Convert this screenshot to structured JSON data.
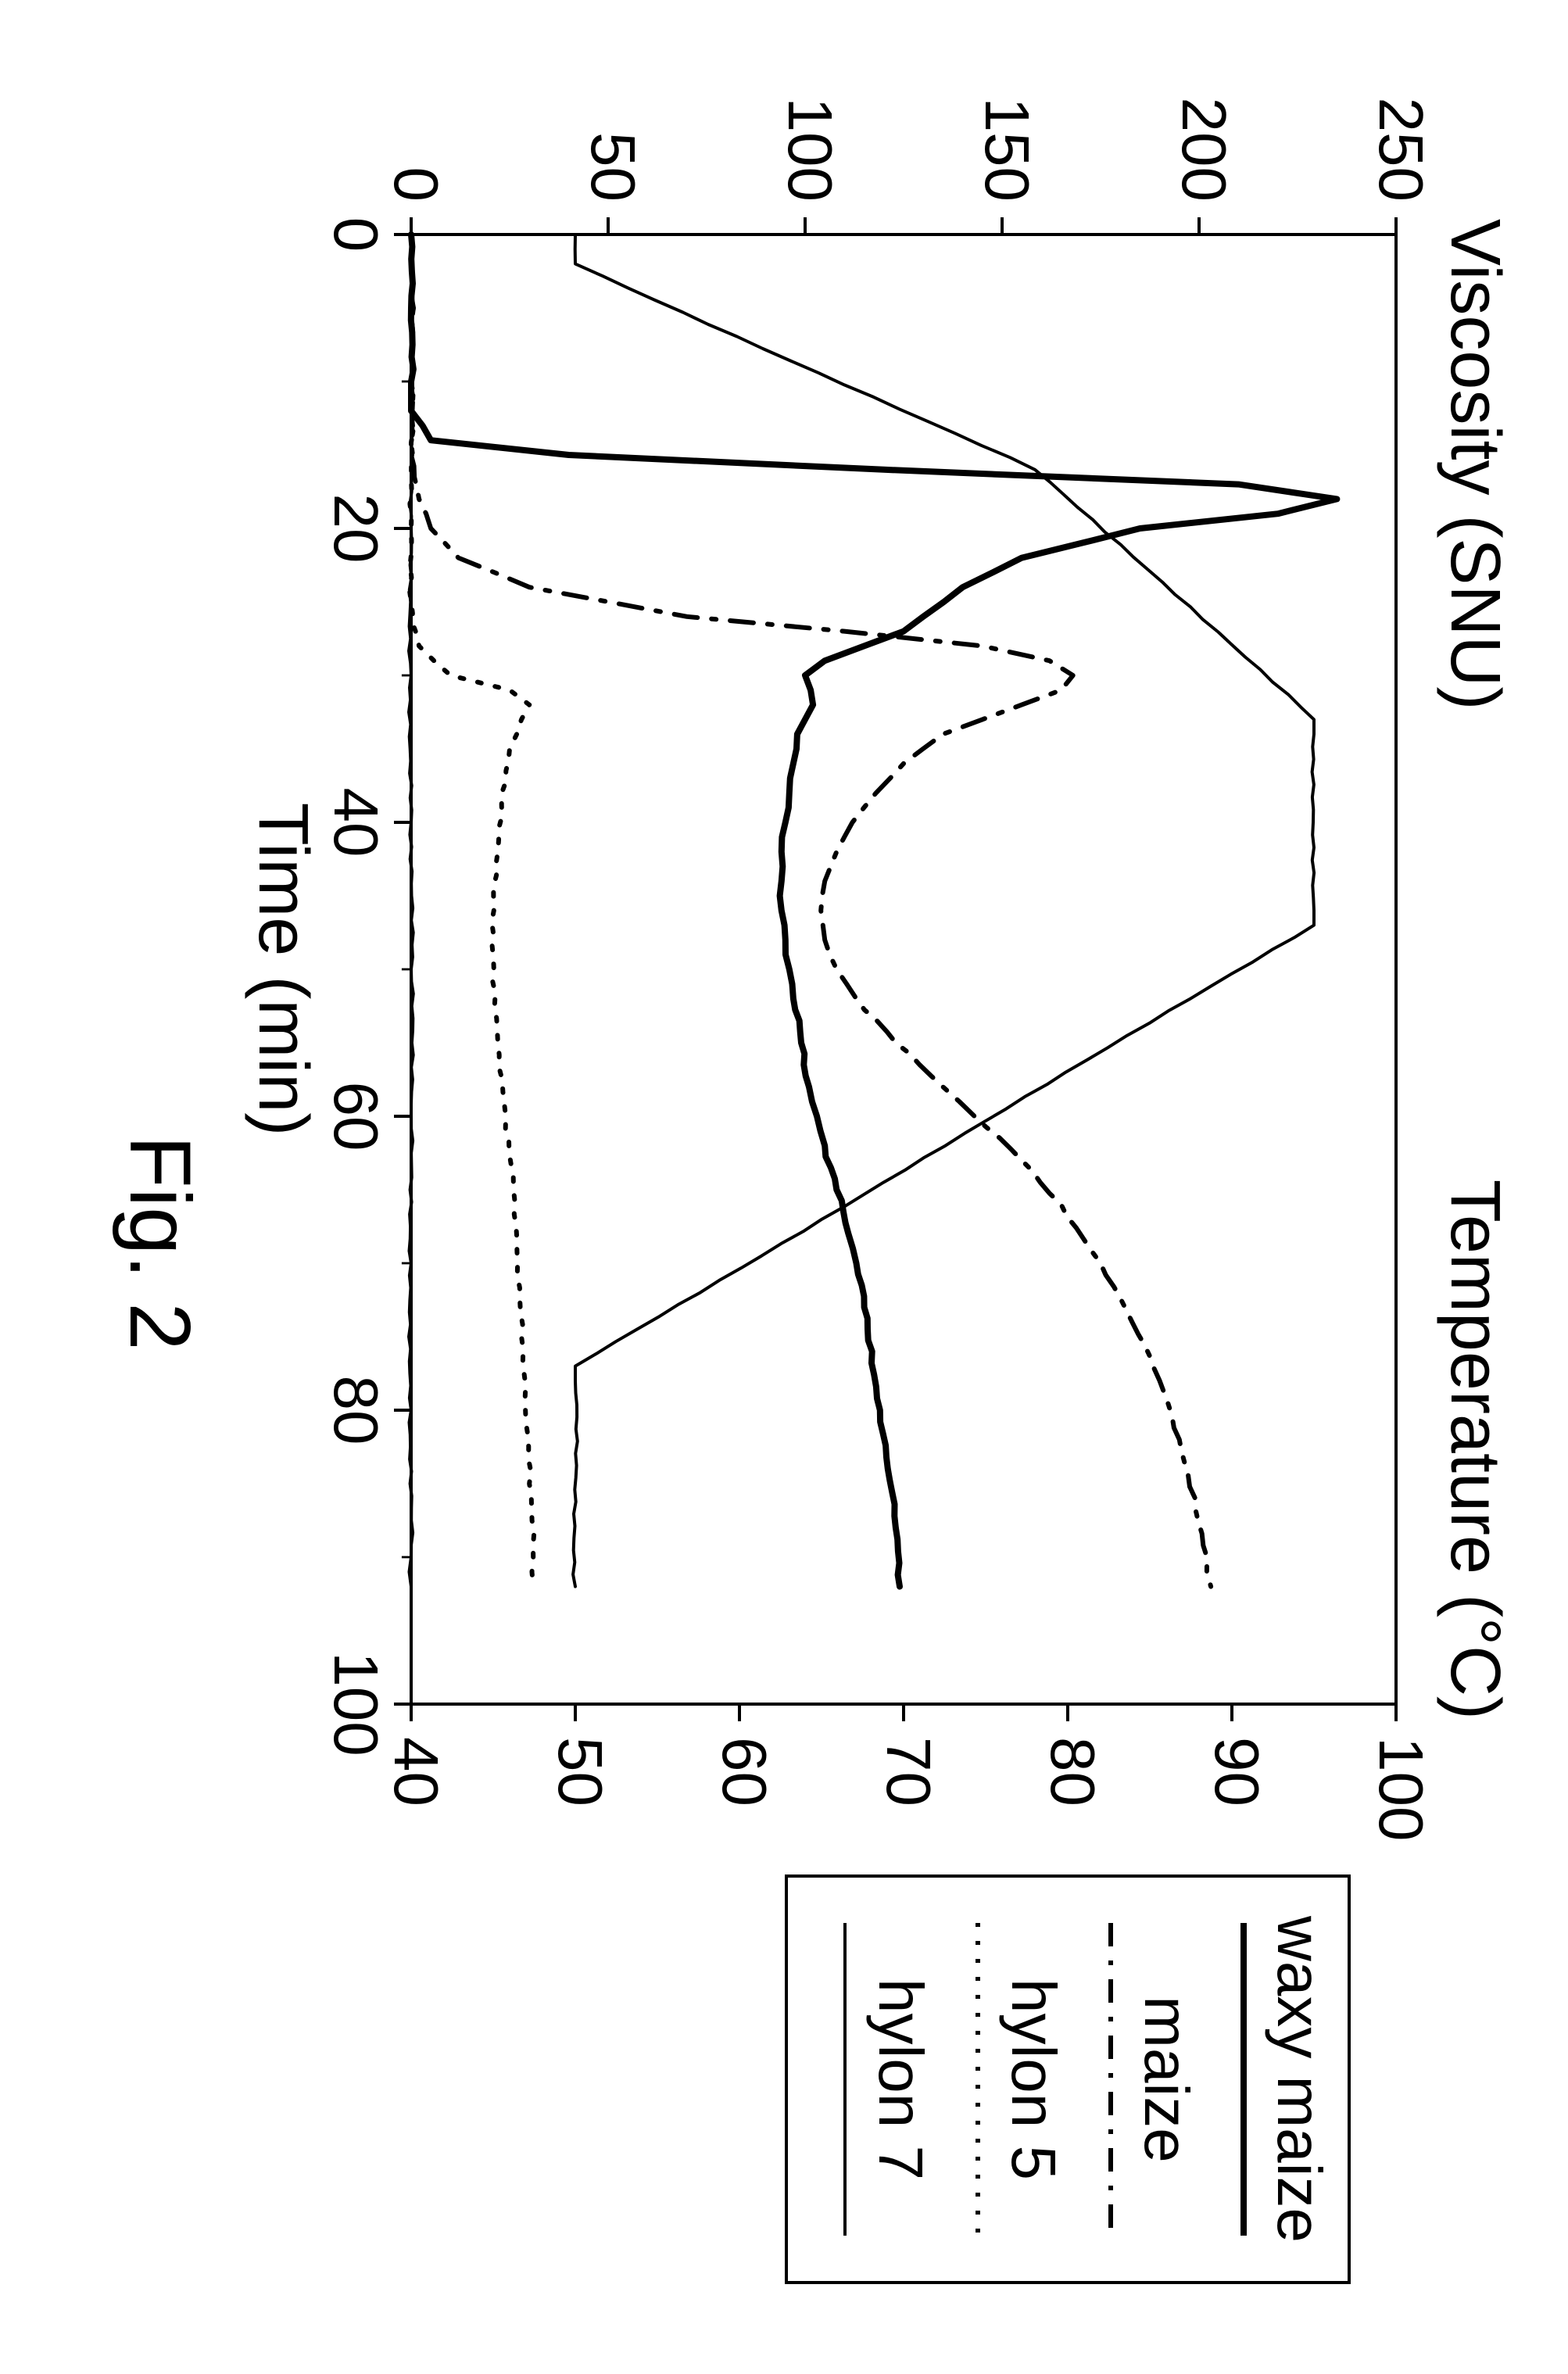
{
  "figure": {
    "caption": "Fig. 2",
    "caption_fontsize": 110,
    "background_color": "#ffffff",
    "rotation": 90,
    "plot": {
      "width_logical": 2800,
      "height_logical": 1700,
      "x_axis": {
        "label": "Time (min)",
        "label_fontsize": 90,
        "min": 0,
        "max": 100,
        "ticks": [
          0,
          20,
          40,
          60,
          80,
          100
        ],
        "tick_fontsize": 80
      },
      "y_left": {
        "label": "Viscosity (SNU)",
        "label_fontsize": 90,
        "min": 0,
        "max": 250,
        "ticks": [
          0,
          50,
          100,
          150,
          200,
          250
        ],
        "tick_fontsize": 80
      },
      "y_right": {
        "label": "Temperature (°C)",
        "label_fontsize": 90,
        "min": 40,
        "max": 100,
        "ticks": [
          40,
          50,
          60,
          70,
          80,
          90,
          100
        ],
        "tick_fontsize": 80
      },
      "line_color": "#000000",
      "axis_stroke_width": 4,
      "series_stroke_width": 6,
      "tick_length": 22
    },
    "legend": {
      "items": [
        {
          "label": "waxy maize",
          "dash": "solid"
        },
        {
          "label": "maize",
          "dash": "dash-dot"
        },
        {
          "label": "hylon 5",
          "dash": "dotted"
        },
        {
          "label": "hylon 7",
          "dash": "solid-thin",
          "note": "temperature profile shares this solid thin line"
        }
      ],
      "fontsize": 80,
      "box_stroke": "#000000",
      "box_stroke_width": 4
    },
    "series": {
      "waxy_maize": {
        "axis": "left",
        "dash": "solid",
        "data": [
          [
            0,
            0
          ],
          [
            5,
            0
          ],
          [
            10,
            0
          ],
          [
            12,
            0
          ],
          [
            14,
            5
          ],
          [
            15,
            40
          ],
          [
            16,
            120
          ],
          [
            17,
            210
          ],
          [
            18,
            235
          ],
          [
            19,
            220
          ],
          [
            20,
            185
          ],
          [
            22,
            155
          ],
          [
            24,
            140
          ],
          [
            26,
            130
          ],
          [
            27,
            125
          ],
          [
            28,
            115
          ],
          [
            29,
            105
          ],
          [
            30,
            100
          ],
          [
            32,
            102
          ],
          [
            33,
            100
          ],
          [
            34,
            98
          ],
          [
            36,
            97
          ],
          [
            38,
            96
          ],
          [
            40,
            95
          ],
          [
            42,
            94
          ],
          [
            44,
            94
          ],
          [
            46,
            94
          ],
          [
            48,
            95
          ],
          [
            50,
            96
          ],
          [
            52,
            97
          ],
          [
            55,
            99
          ],
          [
            58,
            101
          ],
          [
            60,
            103
          ],
          [
            62,
            105
          ],
          [
            65,
            108
          ],
          [
            68,
            111
          ],
          [
            70,
            113
          ],
          [
            73,
            115
          ],
          [
            76,
            117
          ],
          [
            80,
            119
          ],
          [
            84,
            121
          ],
          [
            88,
            123
          ],
          [
            92,
            124
          ]
        ]
      },
      "maize": {
        "axis": "left",
        "dash": "dash-dot",
        "data": [
          [
            0,
            0
          ],
          [
            10,
            0
          ],
          [
            15,
            0
          ],
          [
            18,
            2
          ],
          [
            20,
            5
          ],
          [
            22,
            12
          ],
          [
            24,
            30
          ],
          [
            26,
            70
          ],
          [
            27,
            110
          ],
          [
            28,
            145
          ],
          [
            29,
            162
          ],
          [
            30,
            168
          ],
          [
            31,
            165
          ],
          [
            32,
            155
          ],
          [
            33,
            145
          ],
          [
            34,
            135
          ],
          [
            36,
            125
          ],
          [
            38,
            118
          ],
          [
            40,
            112
          ],
          [
            42,
            108
          ],
          [
            44,
            105
          ],
          [
            46,
            104
          ],
          [
            48,
            105
          ],
          [
            50,
            108
          ],
          [
            52,
            113
          ],
          [
            55,
            123
          ],
          [
            58,
            135
          ],
          [
            60,
            143
          ],
          [
            63,
            155
          ],
          [
            66,
            165
          ],
          [
            70,
            175
          ],
          [
            74,
            183
          ],
          [
            78,
            190
          ],
          [
            82,
            195
          ],
          [
            86,
            199
          ],
          [
            90,
            202
          ],
          [
            92,
            203
          ]
        ]
      },
      "hylon5": {
        "axis": "left",
        "dash": "dotted",
        "data": [
          [
            0,
            0
          ],
          [
            10,
            0
          ],
          [
            20,
            0
          ],
          [
            25,
            0
          ],
          [
            28,
            2
          ],
          [
            30,
            10
          ],
          [
            31,
            25
          ],
          [
            32,
            30
          ],
          [
            33,
            28
          ],
          [
            35,
            25
          ],
          [
            38,
            23
          ],
          [
            42,
            22
          ],
          [
            46,
            21
          ],
          [
            50,
            21
          ],
          [
            55,
            22
          ],
          [
            60,
            24
          ],
          [
            65,
            26
          ],
          [
            70,
            27
          ],
          [
            75,
            28
          ],
          [
            80,
            29
          ],
          [
            85,
            30
          ],
          [
            90,
            31
          ],
          [
            92,
            31
          ]
        ]
      },
      "temperature": {
        "axis": "right",
        "dash": "solid-thin",
        "data": [
          [
            0,
            50
          ],
          [
            2,
            50
          ],
          [
            16,
            78
          ],
          [
            33,
            95
          ],
          [
            34,
            95
          ],
          [
            46,
            95
          ],
          [
            47,
            95
          ],
          [
            77,
            50
          ],
          [
            78,
            50
          ],
          [
            92,
            50
          ]
        ]
      },
      "hylon7": {
        "axis": "left",
        "dash": "solid-thin",
        "data": [
          [
            0,
            0
          ],
          [
            10,
            0
          ],
          [
            20,
            0
          ],
          [
            30,
            0
          ],
          [
            40,
            0
          ],
          [
            50,
            0
          ],
          [
            60,
            0
          ],
          [
            70,
            0
          ],
          [
            80,
            0
          ],
          [
            90,
            0
          ],
          [
            92,
            0
          ]
        ]
      }
    }
  }
}
